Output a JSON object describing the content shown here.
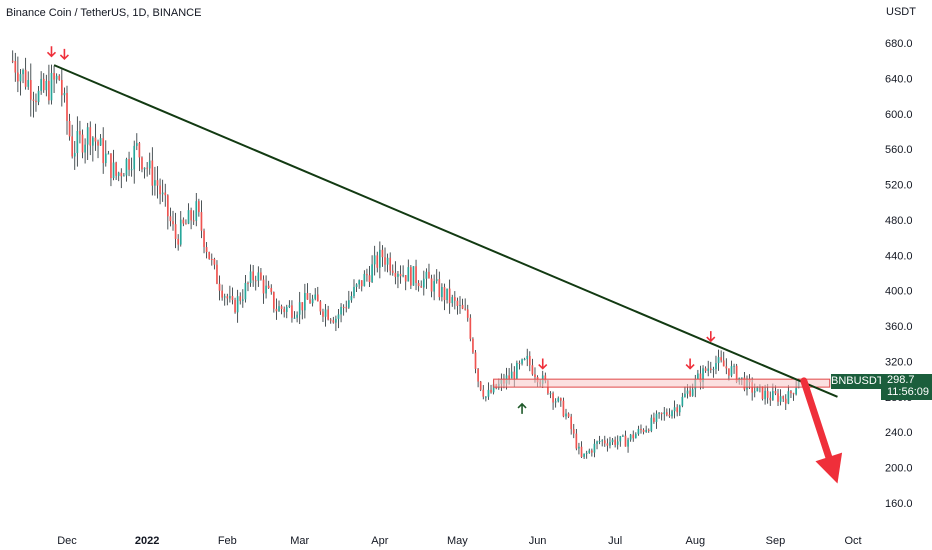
{
  "header": {
    "title": "Binance Coin / TetherUS, 1D, BINANCE",
    "unit": "USDT"
  },
  "price_badge": {
    "symbol": "BNBUSDT",
    "price": "298.7",
    "countdown": "11:56:09"
  },
  "colors": {
    "up": "#26a69a",
    "down": "#ef5350",
    "wick": "#1f2a2e",
    "trendline": "#123a12",
    "zone_fill": "#f8c7c7",
    "zone_stroke": "#e04848",
    "arrow": "#ef2f3a",
    "badge": "#1b5e3c"
  },
  "chart_data": {
    "type": "candlestick",
    "title": "Binance Coin / TetherUS, 1D, BINANCE",
    "ylabel": "USDT",
    "ylim": [
      140,
      700
    ],
    "y_ticks": [
      680,
      640,
      600,
      560,
      520,
      480,
      440,
      400,
      360,
      320,
      280,
      240,
      200,
      160
    ],
    "x_ticks": [
      {
        "label": "Dec",
        "bold": false
      },
      {
        "label": "2022",
        "bold": true
      },
      {
        "label": "Feb",
        "bold": false
      },
      {
        "label": "Mar",
        "bold": false
      },
      {
        "label": "Apr",
        "bold": false
      },
      {
        "label": "May",
        "bold": false
      },
      {
        "label": "Jun",
        "bold": false
      },
      {
        "label": "Jul",
        "bold": false
      },
      {
        "label": "Aug",
        "bold": false
      },
      {
        "label": "Sep",
        "bold": false
      },
      {
        "label": "Oct",
        "bold": false
      }
    ],
    "price_path": [
      [
        "2021-11-10",
        660
      ],
      [
        "2021-11-20",
        620
      ],
      [
        "2021-11-28",
        640
      ],
      [
        "2021-12-03",
        560
      ],
      [
        "2021-12-10",
        580
      ],
      [
        "2021-12-20",
        530
      ],
      [
        "2021-12-28",
        560
      ],
      [
        "2022-01-05",
        520
      ],
      [
        "2022-01-12",
        460
      ],
      [
        "2022-01-20",
        490
      ],
      [
        "2022-01-27",
        420
      ],
      [
        "2022-02-03",
        380
      ],
      [
        "2022-02-12",
        420
      ],
      [
        "2022-02-20",
        380
      ],
      [
        "2022-02-27",
        380
      ],
      [
        "2022-03-05",
        390
      ],
      [
        "2022-03-15",
        370
      ],
      [
        "2022-03-25",
        410
      ],
      [
        "2022-04-02",
        440
      ],
      [
        "2022-04-10",
        420
      ],
      [
        "2022-04-20",
        410
      ],
      [
        "2022-04-28",
        390
      ],
      [
        "2022-05-05",
        370
      ],
      [
        "2022-05-09",
        300
      ],
      [
        "2022-05-12",
        280
      ],
      [
        "2022-05-20",
        300
      ],
      [
        "2022-05-28",
        320
      ],
      [
        "2022-06-05",
        290
      ],
      [
        "2022-06-12",
        260
      ],
      [
        "2022-06-18",
        210
      ],
      [
        "2022-06-25",
        230
      ],
      [
        "2022-07-05",
        230
      ],
      [
        "2022-07-15",
        250
      ],
      [
        "2022-07-25",
        270
      ],
      [
        "2022-08-02",
        300
      ],
      [
        "2022-08-08",
        320
      ],
      [
        "2022-08-15",
        310
      ],
      [
        "2022-08-22",
        290
      ],
      [
        "2022-08-30",
        280
      ],
      [
        "2022-09-06",
        280
      ],
      [
        "2022-09-10",
        298.7
      ]
    ],
    "last_price": 298.7,
    "annotations": {
      "trendline": {
        "from": [
          "2021-11-26",
          655
        ],
        "to": [
          "2022-09-25",
          280
        ]
      },
      "resistance_zone": {
        "x_from": "2022-05-15",
        "x_to": "2022-09-22",
        "y_low": 291,
        "y_high": 300
      },
      "arrow_down": {
        "from": [
          "2022-09-12",
          298
        ],
        "to": [
          "2022-09-25",
          182
        ]
      }
    }
  }
}
